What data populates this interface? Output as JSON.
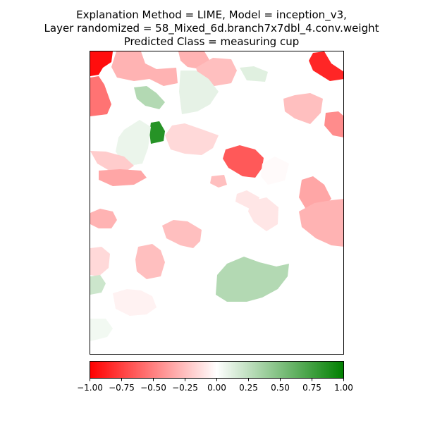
{
  "title_lines": [
    "Explanation Method = LIME, Model = inception_v3,",
    "Layer randomized = 58_Mixed_6d.branch7x7dbl_4.conv.weight",
    "Predicted Class = measuring cup"
  ],
  "chart_data": {
    "type": "heatmap",
    "title": "Explanation Method = LIME, Model = inception_v3,\nLayer randomized = 58_Mixed_6d.branch7x7dbl_4.conv.weight\nPredicted Class = measuring cup",
    "xlabel": "",
    "ylabel": "",
    "axes_ticks": "none",
    "colormap": {
      "name": "red-white-green",
      "stops": [
        {
          "value": -1.0,
          "color": "#ff0000"
        },
        {
          "value": 0.0,
          "color": "#ffffff"
        },
        {
          "value": 1.0,
          "color": "#008000"
        }
      ]
    },
    "colorbar": {
      "orientation": "horizontal",
      "placement": "bottom",
      "range": [
        -1.0,
        1.0
      ],
      "ticks": [
        -1.0,
        -0.75,
        -0.5,
        -0.25,
        0.0,
        0.25,
        0.5,
        0.75,
        1.0
      ],
      "tick_labels": [
        "−1.00",
        "−0.75",
        "−0.50",
        "−0.25",
        "0.00",
        "0.25",
        "0.50",
        "0.75",
        "1.00"
      ]
    },
    "superpixel_values": [
      -0.95,
      -0.3,
      -0.3,
      -0.25,
      0.12,
      -0.85,
      -0.55,
      0.3,
      0.1,
      -0.25,
      -0.45,
      0.85,
      0.08,
      -0.15,
      -0.2,
      -0.65,
      -0.02,
      -0.35,
      -0.25,
      -0.1,
      -0.1,
      -0.35,
      -0.3,
      -0.3,
      -0.25,
      0.3,
      -0.15,
      -0.25,
      0.2,
      -0.05,
      0.05
    ]
  }
}
